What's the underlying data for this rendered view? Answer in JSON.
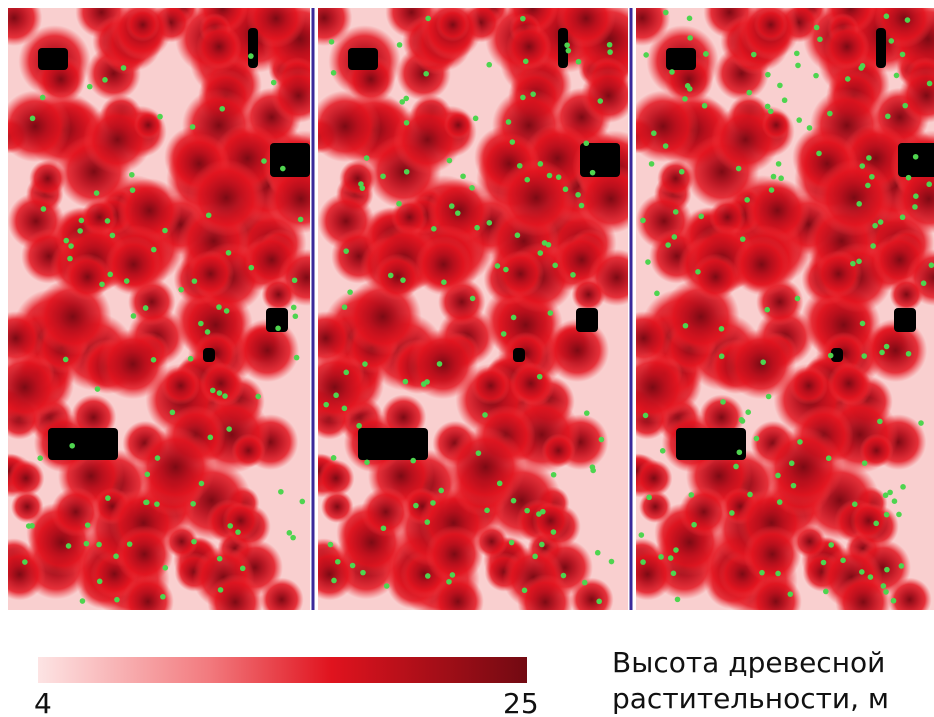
{
  "legend": {
    "title_lines": [
      "Высота древесной",
      "растительности, м"
    ],
    "min": 4,
    "max": 25
  }
}
